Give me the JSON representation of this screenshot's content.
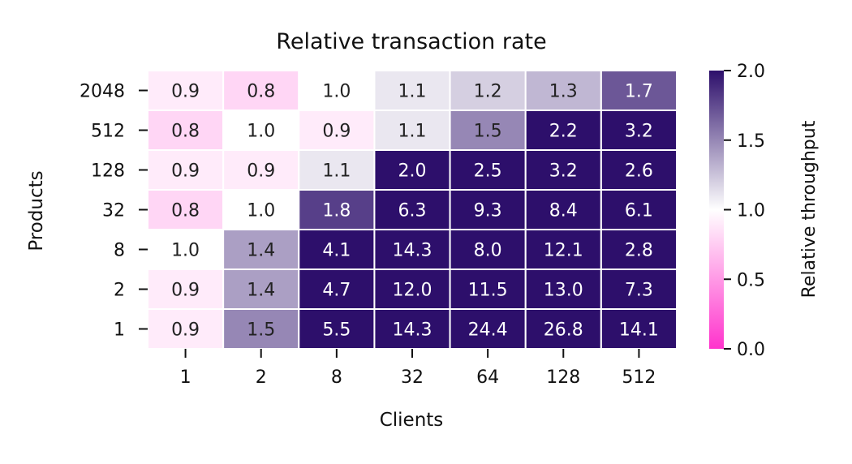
{
  "chart_data": {
    "type": "heatmap",
    "title": "Relative transaction rate",
    "xlabel": "Clients",
    "ylabel": "Products",
    "x_categories": [
      "1",
      "2",
      "8",
      "32",
      "64",
      "128",
      "512"
    ],
    "y_categories": [
      "2048",
      "512",
      "128",
      "32",
      "8",
      "2",
      "1"
    ],
    "values": [
      [
        0.9,
        0.8,
        1.0,
        1.1,
        1.2,
        1.3,
        1.7
      ],
      [
        0.8,
        1.0,
        0.9,
        1.1,
        1.5,
        2.2,
        3.2
      ],
      [
        0.9,
        0.9,
        1.1,
        2.0,
        2.5,
        3.2,
        2.6
      ],
      [
        0.8,
        1.0,
        1.8,
        6.3,
        9.3,
        8.4,
        6.1
      ],
      [
        1.0,
        1.4,
        4.1,
        14.3,
        8.0,
        12.1,
        2.8
      ],
      [
        0.9,
        1.4,
        4.7,
        12.0,
        11.5,
        13.0,
        7.3
      ],
      [
        0.9,
        1.5,
        5.5,
        14.3,
        24.4,
        26.8,
        14.1
      ]
    ],
    "colorbar": {
      "label": "Relative throughput",
      "vmin": 0.0,
      "vmax": 2.0,
      "center": 1.0,
      "ticks": [
        "0.0",
        "0.5",
        "1.0",
        "1.5",
        "2.0"
      ],
      "colors": {
        "low": "#ff33cc",
        "center": "#ffffff",
        "high": "#2d0f6b"
      }
    },
    "cell_border_color": "#ffffff",
    "text_color_light_cells": "#222222",
    "text_color_dark_cells": "#ffffff"
  }
}
